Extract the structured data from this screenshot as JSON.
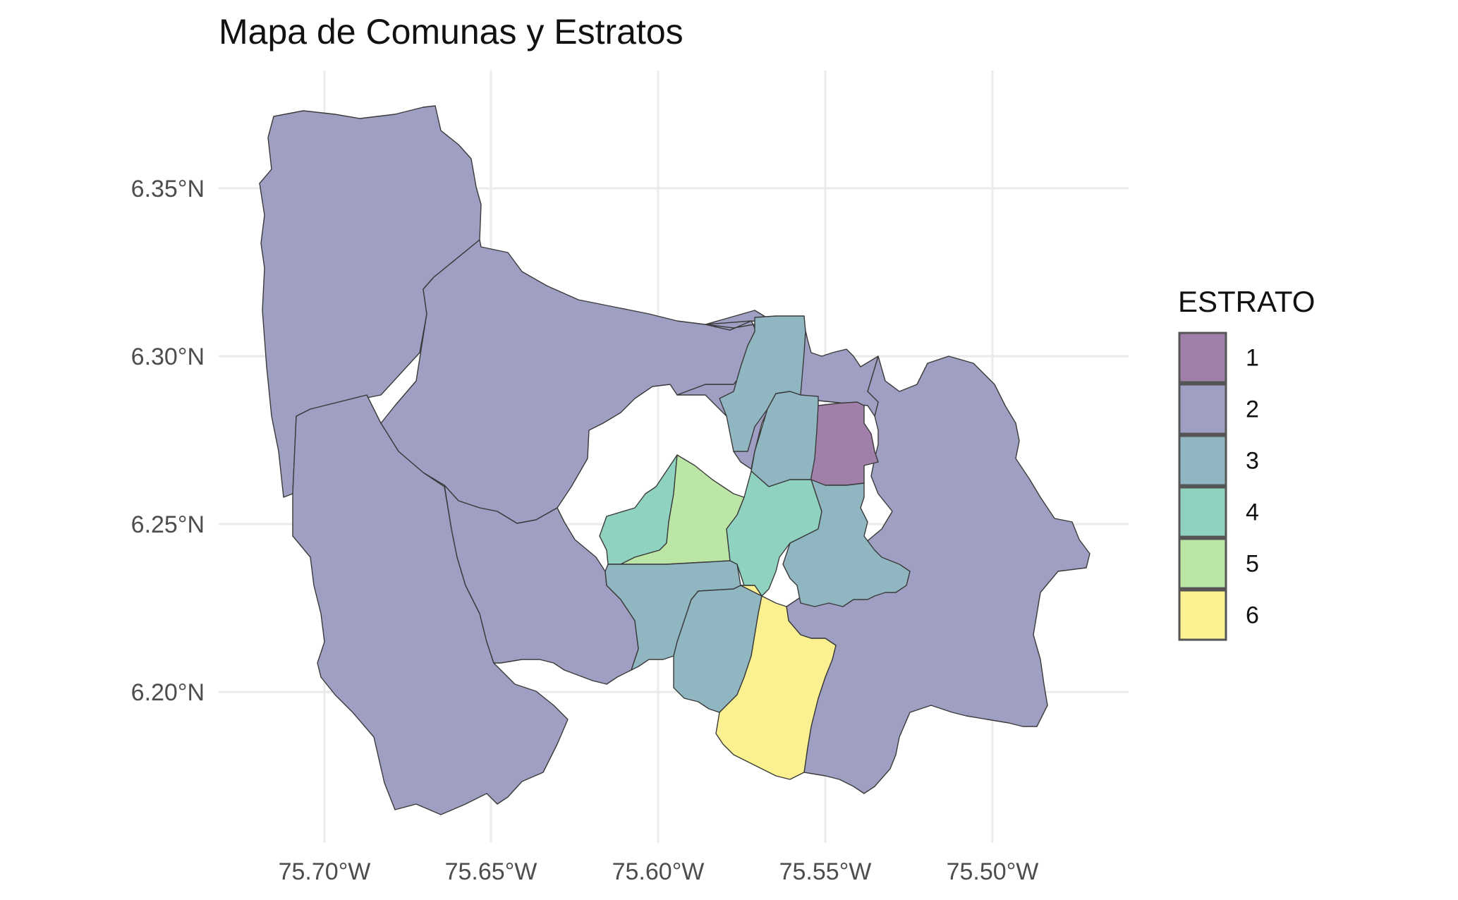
{
  "title": "Mapa de Comunas y Estratos",
  "chart_data": {
    "type": "choropleth",
    "title": "Mapa de Comunas y Estratos",
    "x_ticks": [
      "75.70°W",
      "75.65°W",
      "75.60°W",
      "75.55°W",
      "75.50°W"
    ],
    "y_ticks": [
      "6.35°N",
      "6.30°N",
      "6.25°N",
      "6.20°N"
    ],
    "x_range_lon": [
      -75.733,
      -75.463
    ],
    "y_range_lat": [
      6.165,
      6.377
    ],
    "grid": true,
    "legend_position": "right",
    "legend": {
      "title": "ESTRATO",
      "items": [
        {
          "label": "1",
          "color": "#a07fa9"
        },
        {
          "label": "2",
          "color": "#9e9fc2"
        },
        {
          "label": "3",
          "color": "#90b6c2"
        },
        {
          "label": "4",
          "color": "#8fd2c0"
        },
        {
          "label": "5",
          "color": "#bce6a6"
        },
        {
          "label": "6",
          "color": "#fbf191"
        }
      ]
    }
  }
}
